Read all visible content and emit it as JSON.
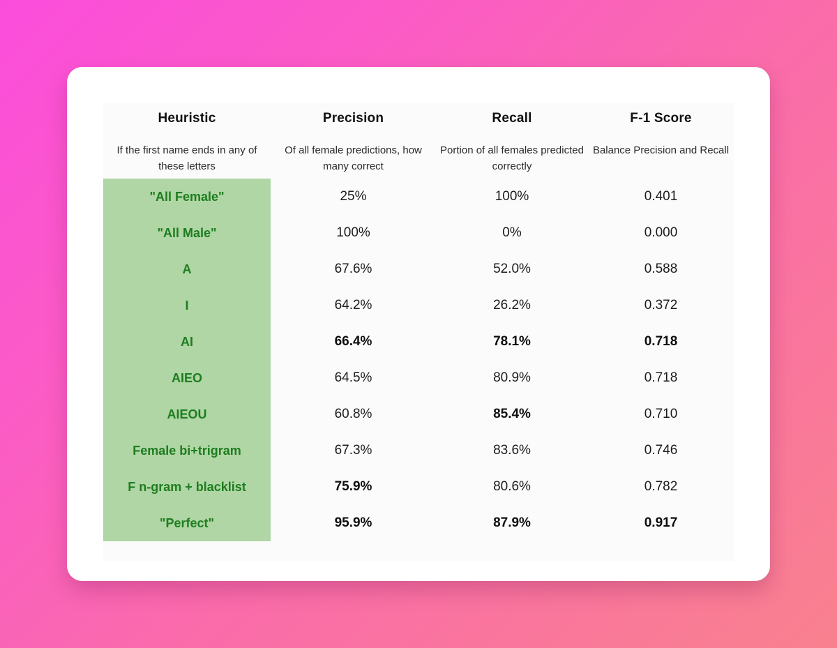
{
  "colors": {
    "background_gradient_start": "#fb4ddc",
    "background_gradient_end": "#f9818e",
    "card_background": "#ffffff",
    "highlight_column_background": "#afd6a4",
    "highlight_text_green": "#1e7d20",
    "body_text": "#1c1c1c"
  },
  "table": {
    "columns": [
      {
        "label": "Heuristic",
        "description": "If the first name ends in any of these letters"
      },
      {
        "label": "Precision",
        "description": "Of all female predictions, how many correct"
      },
      {
        "label": "Recall",
        "description": "Portion of all females predicted correctly"
      },
      {
        "label": "F-1 Score",
        "description": "Balance Precision and Recall"
      }
    ],
    "rows": [
      {
        "heuristic": {
          "text": "\"All Female\""
        },
        "precision": {
          "text": "25%",
          "bold": false
        },
        "recall": {
          "text": "100%",
          "bold": false
        },
        "f1": {
          "text": "0.401",
          "bold": false
        }
      },
      {
        "heuristic": {
          "text": "\"All Male\""
        },
        "precision": {
          "text": "100%",
          "bold": false
        },
        "recall": {
          "text": "0%",
          "bold": false
        },
        "f1": {
          "text": "0.000",
          "bold": false
        }
      },
      {
        "heuristic": {
          "text": "A"
        },
        "precision": {
          "text": "67.6%",
          "bold": false
        },
        "recall": {
          "text": "52.0%",
          "bold": false
        },
        "f1": {
          "text": "0.588",
          "bold": false
        }
      },
      {
        "heuristic": {
          "text": "I"
        },
        "precision": {
          "text": "64.2%",
          "bold": false
        },
        "recall": {
          "text": "26.2%",
          "bold": false
        },
        "f1": {
          "text": "0.372",
          "bold": false
        }
      },
      {
        "heuristic": {
          "text": "AI"
        },
        "precision": {
          "text": "66.4%",
          "bold": true
        },
        "recall": {
          "text": "78.1%",
          "bold": true
        },
        "f1": {
          "text": "0.718",
          "bold": true
        }
      },
      {
        "heuristic": {
          "text": "AIEO"
        },
        "precision": {
          "text": "64.5%",
          "bold": false
        },
        "recall": {
          "text": "80.9%",
          "bold": false
        },
        "f1": {
          "text": "0.718",
          "bold": false
        }
      },
      {
        "heuristic": {
          "text": "AIEOU"
        },
        "precision": {
          "text": "60.8%",
          "bold": false
        },
        "recall": {
          "text": "85.4%",
          "bold": true
        },
        "f1": {
          "text": "0.710",
          "bold": false
        }
      },
      {
        "heuristic": {
          "text": "Female bi+trigram"
        },
        "precision": {
          "text": "67.3%",
          "bold": false
        },
        "recall": {
          "text": "83.6%",
          "bold": false
        },
        "f1": {
          "text": "0.746",
          "bold": false
        }
      },
      {
        "heuristic": {
          "text": "F n-gram + blacklist"
        },
        "precision": {
          "text": "75.9%",
          "bold": true
        },
        "recall": {
          "text": "80.6%",
          "bold": false
        },
        "f1": {
          "text": "0.782",
          "bold": false
        }
      },
      {
        "heuristic": {
          "text": "\"Perfect\""
        },
        "precision": {
          "text": "95.9%",
          "bold": true
        },
        "recall": {
          "text": "87.9%",
          "bold": true
        },
        "f1": {
          "text": "0.917",
          "bold": true
        }
      }
    ]
  },
  "chart_data": {
    "type": "table",
    "title": "",
    "columns": [
      "Heuristic",
      "Precision",
      "Recall",
      "F-1 Score"
    ],
    "column_descriptions": [
      "If the first name ends in any of these letters",
      "Of all female predictions, how many correct",
      "Portion of all females predicted correctly",
      "Balance Precision and Recall"
    ],
    "rows": [
      [
        "\"All Female\"",
        "25%",
        "100%",
        "0.401"
      ],
      [
        "\"All Male\"",
        "100%",
        "0%",
        "0.000"
      ],
      [
        "A",
        "67.6%",
        "52.0%",
        "0.588"
      ],
      [
        "I",
        "64.2%",
        "26.2%",
        "0.372"
      ],
      [
        "AI",
        "66.4%",
        "78.1%",
        "0.718"
      ],
      [
        "AIEO",
        "64.5%",
        "80.9%",
        "0.718"
      ],
      [
        "AIEOU",
        "60.8%",
        "85.4%",
        "0.710"
      ],
      [
        "Female bi+trigram",
        "67.3%",
        "83.6%",
        "0.746"
      ],
      [
        "F n-gram + blacklist",
        "75.9%",
        "80.6%",
        "0.782"
      ],
      [
        "\"Perfect\"",
        "95.9%",
        "87.9%",
        "0.917"
      ]
    ],
    "bold_cells": [
      [
        4,
        1
      ],
      [
        4,
        2
      ],
      [
        4,
        3
      ],
      [
        6,
        2
      ],
      [
        8,
        1
      ],
      [
        9,
        1
      ],
      [
        9,
        2
      ],
      [
        9,
        3
      ]
    ],
    "layout_hints": "first column cells highlighted with light-green background and dark-green bold text; no gridlines; values center-aligned"
  }
}
